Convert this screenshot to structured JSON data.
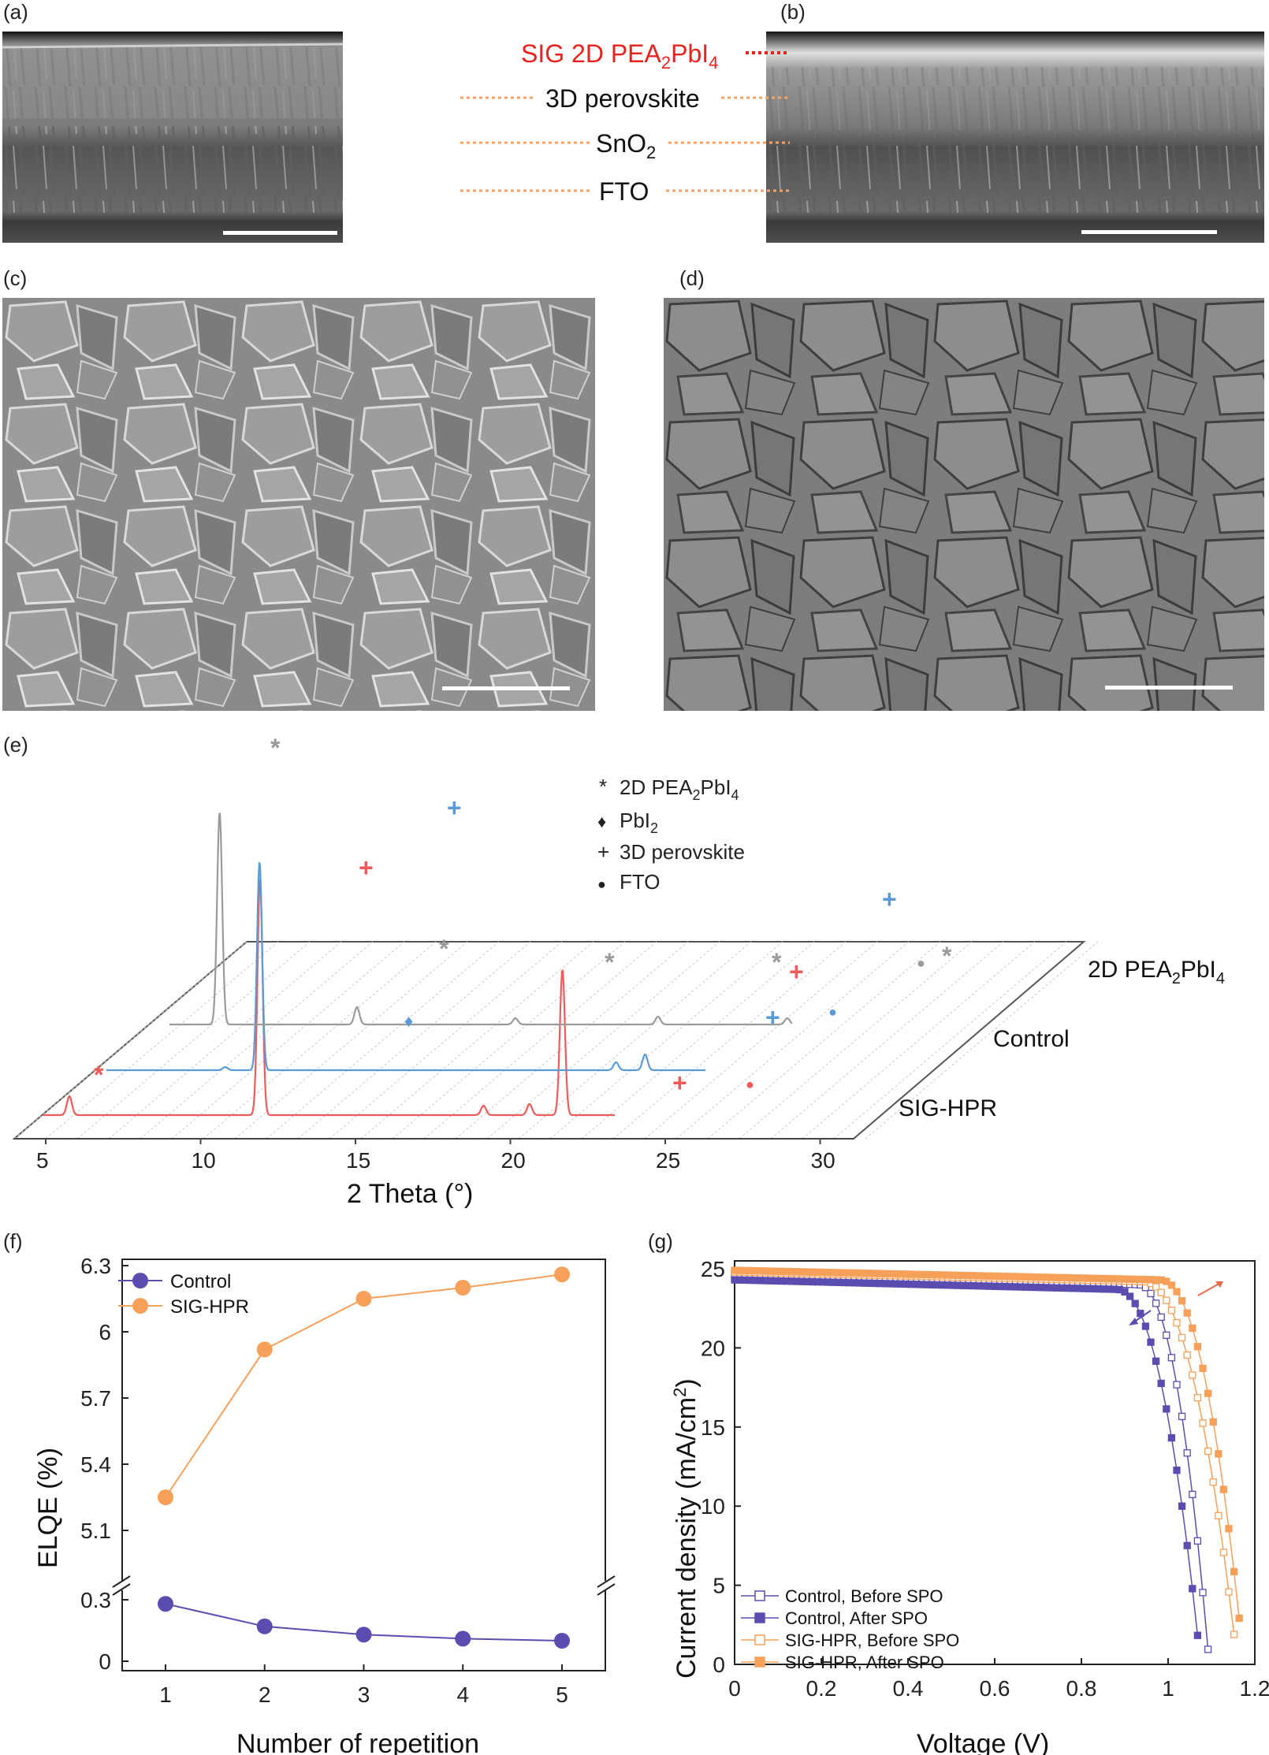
{
  "panel_labels": [
    "(a)",
    "(b)",
    "(c)",
    "(d)",
    "(e)",
    "(f)",
    "(g)"
  ],
  "layer_labels": {
    "sig": "SIG 2D PEA",
    "sig_sub": "2",
    "sig_tail": "PbI",
    "sig_sub2": "4",
    "perov": "3D perovskite",
    "sno": "SnO",
    "sno_sub": "2",
    "fto": "FTO"
  },
  "colors": {
    "gray": "#9a9a9a",
    "blue": "#5b9bd5",
    "red": "#f05a5a",
    "purple": "#5b4db0",
    "orange": "#f7a05a",
    "accent_red": "#e8221d",
    "dot_orange": "#f2a26b"
  },
  "xrd": {
    "xlabel": "2 Theta (°)",
    "x_ticks": [
      5,
      10,
      15,
      20,
      25,
      30
    ],
    "legend": [
      {
        "marker": "*",
        "text": "2D PEA",
        "sub": "2",
        "tail": "PbI",
        "sub2": "4"
      },
      {
        "marker": "♦",
        "text": "PbI",
        "sub": "2",
        "tail": "",
        "sub2": ""
      },
      {
        "marker": "+",
        "text": "3D perovskite",
        "sub": "",
        "tail": "",
        "sub2": ""
      },
      {
        "marker": "●",
        "text": "FTO",
        "sub": "",
        "tail": "",
        "sub2": ""
      }
    ],
    "series_labels": {
      "pea": "2D PEA",
      "pea_sub": "2",
      "pea_tail": "PbI",
      "pea_sub2": "4",
      "control": "Control",
      "sig": "SIG-HPR"
    }
  },
  "chart_data": [
    {
      "type": "line",
      "title": "",
      "xlabel": "Number of repetition",
      "ylabel": "ELQE (%)",
      "x": [
        1,
        2,
        3,
        4,
        5
      ],
      "y_ticks_upper": [
        "5.1",
        "5.4",
        "5.7",
        "6",
        "6.3"
      ],
      "y_ticks_lower": [
        "0",
        "0.3"
      ],
      "x_ticks": [
        "1",
        "2",
        "3",
        "4",
        "5"
      ],
      "series": [
        {
          "name": "Control",
          "values": [
            0.28,
            0.17,
            0.13,
            0.11,
            0.1
          ]
        },
        {
          "name": "SIG-HPR",
          "values": [
            5.25,
            5.92,
            6.15,
            6.2,
            6.26
          ]
        }
      ],
      "legend": "top-left"
    },
    {
      "type": "line",
      "title": "",
      "xlabel": "Voltage (V)",
      "ylabel": "Current density (mA/cm",
      "ylabel_sup": "2",
      "ylabel_tail": ")",
      "xlim": [
        0,
        1.2
      ],
      "ylim": [
        0,
        25
      ],
      "x_ticks": [
        "0",
        "0.2",
        "0.4",
        "0.6",
        "0.8",
        "1",
        "1.2"
      ],
      "y_ticks": [
        "0",
        "5",
        "10",
        "15",
        "20",
        "25"
      ],
      "series": [
        {
          "name": "Control, Before SPO",
          "jsc": 24.6,
          "voc": 1.095,
          "knee": 0.93
        },
        {
          "name": "Control, After SPO",
          "jsc": 24.3,
          "voc": 1.075,
          "knee": 0.88
        },
        {
          "name": "SIG-HPR, Before SPO",
          "jsc": 24.8,
          "voc": 1.16,
          "knee": 0.94
        },
        {
          "name": "SIG-HPR, After SPO",
          "jsc": 24.9,
          "voc": 1.175,
          "knee": 0.98
        }
      ],
      "legend": "bottom-left"
    }
  ]
}
